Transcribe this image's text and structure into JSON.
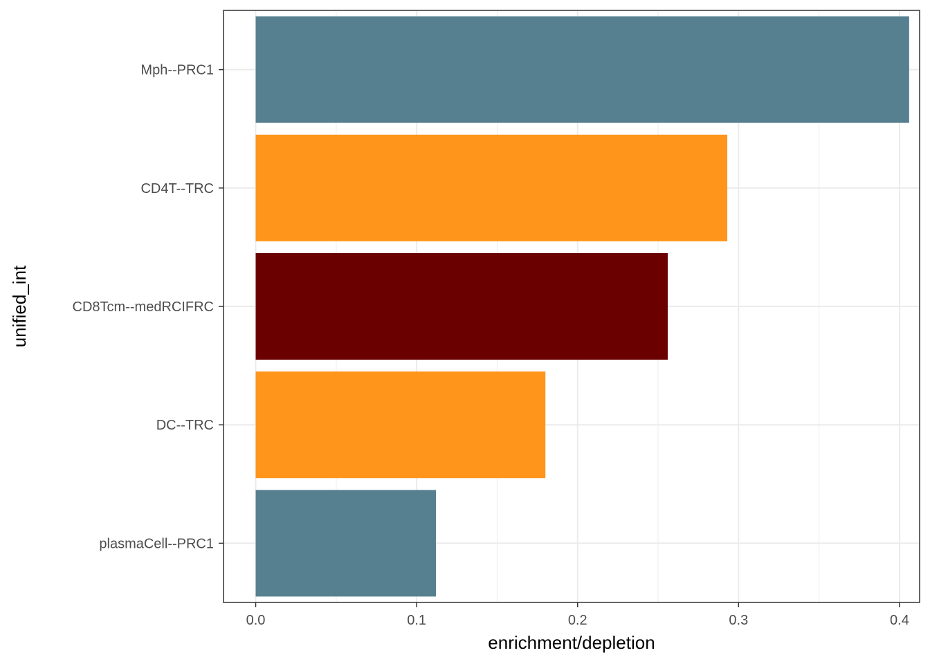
{
  "chart_data": {
    "type": "bar",
    "orientation": "horizontal",
    "title": "",
    "xlabel": "enrichment/depletion",
    "ylabel": "unified_int",
    "xlim": [
      -0.02,
      0.4125
    ],
    "x_ticks": [
      0.0,
      0.1,
      0.2,
      0.3,
      0.4
    ],
    "x_tick_labels": [
      "0.0",
      "0.1",
      "0.2",
      "0.3",
      "0.4"
    ],
    "grid": true,
    "legend": "none",
    "categories": [
      "Mph--PRC1",
      "CD4T--TRC",
      "CD8Tcm--medRCIFRC",
      "DC--TRC",
      "plasmaCell--PRC1"
    ],
    "values": [
      0.406,
      0.293,
      0.256,
      0.18,
      0.112
    ],
    "colors": [
      "#56808F",
      "#FF951A",
      "#6B0000",
      "#FF951A",
      "#56808F"
    ]
  }
}
